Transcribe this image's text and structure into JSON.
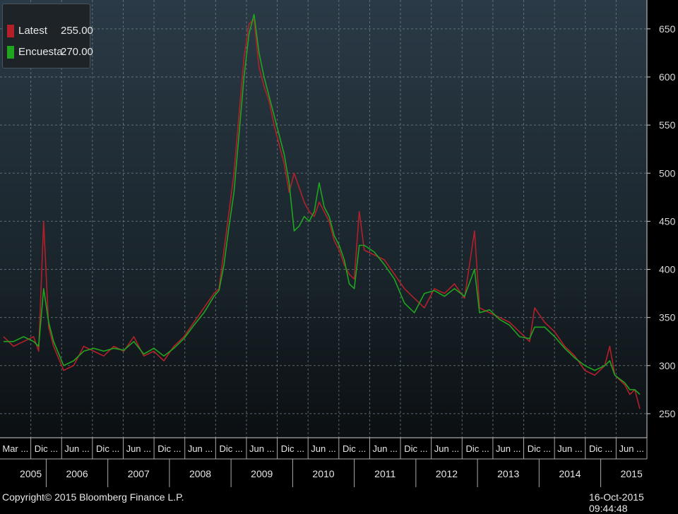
{
  "chart_data": {
    "type": "line",
    "ylim": [
      225,
      680
    ],
    "yticks": [
      250,
      300,
      350,
      400,
      450,
      500,
      550,
      600,
      650
    ],
    "grid": true,
    "legend_position": "top-left",
    "month_labels": [
      "Mar ...",
      "Dic ...",
      "Jun ...",
      "Dic ...",
      "Jun ...",
      "Dic ...",
      "Jun ...",
      "Dic ...",
      "Jun ...",
      "Dic ...",
      "Jun ...",
      "Dic ...",
      "Jun ...",
      "Dic ...",
      "Jun ...",
      "Dic ...",
      "Jun ...",
      "Dic ...",
      "Jun ...",
      "Dic ...",
      "Jun ..."
    ],
    "year_labels": [
      "2005",
      "2006",
      "2007",
      "2008",
      "2009",
      "2010",
      "2011",
      "2012",
      "2013",
      "2014",
      "2015"
    ],
    "x_range": [
      "2005-03",
      "2015-10"
    ],
    "series": [
      {
        "name": "Latest",
        "latest_value": "255.00",
        "color": "#b3202a",
        "points": [
          [
            "2005-03",
            330
          ],
          [
            "2005-05",
            320
          ],
          [
            "2005-07",
            325
          ],
          [
            "2005-09",
            330
          ],
          [
            "2005-10",
            315
          ],
          [
            "2005-11",
            450
          ],
          [
            "2005-12",
            340
          ],
          [
            "2006-01",
            320
          ],
          [
            "2006-03",
            295
          ],
          [
            "2006-05",
            300
          ],
          [
            "2006-07",
            320
          ],
          [
            "2006-09",
            315
          ],
          [
            "2006-11",
            310
          ],
          [
            "2007-01",
            320
          ],
          [
            "2007-03",
            315
          ],
          [
            "2007-05",
            330
          ],
          [
            "2007-07",
            310
          ],
          [
            "2007-09",
            315
          ],
          [
            "2007-11",
            305
          ],
          [
            "2008-01",
            320
          ],
          [
            "2008-03",
            330
          ],
          [
            "2008-05",
            345
          ],
          [
            "2008-07",
            360
          ],
          [
            "2008-09",
            375
          ],
          [
            "2008-10",
            380
          ],
          [
            "2008-11",
            420
          ],
          [
            "2008-12",
            460
          ],
          [
            "2009-01",
            500
          ],
          [
            "2009-02",
            560
          ],
          [
            "2009-03",
            620
          ],
          [
            "2009-04",
            655
          ],
          [
            "2009-05",
            660
          ],
          [
            "2009-06",
            610
          ],
          [
            "2009-07",
            590
          ],
          [
            "2009-08",
            575
          ],
          [
            "2009-09",
            550
          ],
          [
            "2009-10",
            530
          ],
          [
            "2009-11",
            510
          ],
          [
            "2009-12",
            480
          ],
          [
            "2010-01",
            500
          ],
          [
            "2010-02",
            485
          ],
          [
            "2010-03",
            470
          ],
          [
            "2010-04",
            460
          ],
          [
            "2010-05",
            455
          ],
          [
            "2010-06",
            470
          ],
          [
            "2010-07",
            460
          ],
          [
            "2010-08",
            450
          ],
          [
            "2010-09",
            430
          ],
          [
            "2010-10",
            420
          ],
          [
            "2010-11",
            405
          ],
          [
            "2010-12",
            395
          ],
          [
            "2011-01",
            390
          ],
          [
            "2011-02",
            460
          ],
          [
            "2011-03",
            420
          ],
          [
            "2011-05",
            415
          ],
          [
            "2011-07",
            410
          ],
          [
            "2011-09",
            395
          ],
          [
            "2011-11",
            380
          ],
          [
            "2012-01",
            370
          ],
          [
            "2012-03",
            360
          ],
          [
            "2012-05",
            380
          ],
          [
            "2012-07",
            375
          ],
          [
            "2012-09",
            385
          ],
          [
            "2012-11",
            370
          ],
          [
            "2013-01",
            440
          ],
          [
            "2013-02",
            360
          ],
          [
            "2013-04",
            355
          ],
          [
            "2013-06",
            350
          ],
          [
            "2013-08",
            345
          ],
          [
            "2013-10",
            335
          ],
          [
            "2013-12",
            325
          ],
          [
            "2014-01",
            360
          ],
          [
            "2014-03",
            345
          ],
          [
            "2014-05",
            335
          ],
          [
            "2014-07",
            320
          ],
          [
            "2014-09",
            310
          ],
          [
            "2014-11",
            295
          ],
          [
            "2015-01",
            290
          ],
          [
            "2015-03",
            300
          ],
          [
            "2015-04",
            320
          ],
          [
            "2015-05",
            290
          ],
          [
            "2015-07",
            280
          ],
          [
            "2015-08",
            270
          ],
          [
            "2015-09",
            275
          ],
          [
            "2015-10",
            255
          ]
        ]
      },
      {
        "name": "Encuesta",
        "latest_value": "270.00",
        "color": "#1fa51f",
        "points": [
          [
            "2005-03",
            325
          ],
          [
            "2005-05",
            325
          ],
          [
            "2005-07",
            330
          ],
          [
            "2005-09",
            325
          ],
          [
            "2005-10",
            320
          ],
          [
            "2005-11",
            380
          ],
          [
            "2005-12",
            345
          ],
          [
            "2006-01",
            325
          ],
          [
            "2006-03",
            300
          ],
          [
            "2006-05",
            305
          ],
          [
            "2006-07",
            315
          ],
          [
            "2006-09",
            318
          ],
          [
            "2006-11",
            315
          ],
          [
            "2007-01",
            318
          ],
          [
            "2007-03",
            316
          ],
          [
            "2007-05",
            325
          ],
          [
            "2007-07",
            312
          ],
          [
            "2007-09",
            318
          ],
          [
            "2007-11",
            310
          ],
          [
            "2008-01",
            318
          ],
          [
            "2008-03",
            328
          ],
          [
            "2008-05",
            342
          ],
          [
            "2008-07",
            355
          ],
          [
            "2008-09",
            372
          ],
          [
            "2008-10",
            378
          ],
          [
            "2008-11",
            405
          ],
          [
            "2008-12",
            445
          ],
          [
            "2009-01",
            480
          ],
          [
            "2009-02",
            540
          ],
          [
            "2009-03",
            600
          ],
          [
            "2009-04",
            645
          ],
          [
            "2009-05",
            665
          ],
          [
            "2009-06",
            625
          ],
          [
            "2009-07",
            600
          ],
          [
            "2009-08",
            580
          ],
          [
            "2009-09",
            560
          ],
          [
            "2009-10",
            540
          ],
          [
            "2009-11",
            520
          ],
          [
            "2009-12",
            490
          ],
          [
            "2010-01",
            440
          ],
          [
            "2010-02",
            445
          ],
          [
            "2010-03",
            455
          ],
          [
            "2010-04",
            450
          ],
          [
            "2010-05",
            460
          ],
          [
            "2010-06",
            490
          ],
          [
            "2010-07",
            465
          ],
          [
            "2010-08",
            455
          ],
          [
            "2010-09",
            435
          ],
          [
            "2010-10",
            425
          ],
          [
            "2010-11",
            410
          ],
          [
            "2010-12",
            385
          ],
          [
            "2011-01",
            380
          ],
          [
            "2011-02",
            425
          ],
          [
            "2011-03",
            425
          ],
          [
            "2011-05",
            418
          ],
          [
            "2011-07",
            405
          ],
          [
            "2011-09",
            390
          ],
          [
            "2011-11",
            365
          ],
          [
            "2012-01",
            355
          ],
          [
            "2012-03",
            375
          ],
          [
            "2012-05",
            378
          ],
          [
            "2012-07",
            372
          ],
          [
            "2012-09",
            380
          ],
          [
            "2012-11",
            372
          ],
          [
            "2013-01",
            400
          ],
          [
            "2013-02",
            355
          ],
          [
            "2013-04",
            358
          ],
          [
            "2013-06",
            348
          ],
          [
            "2013-08",
            342
          ],
          [
            "2013-10",
            330
          ],
          [
            "2013-12",
            328
          ],
          [
            "2014-01",
            340
          ],
          [
            "2014-03",
            340
          ],
          [
            "2014-05",
            330
          ],
          [
            "2014-07",
            318
          ],
          [
            "2014-09",
            308
          ],
          [
            "2014-11",
            300
          ],
          [
            "2015-01",
            295
          ],
          [
            "2015-03",
            300
          ],
          [
            "2015-04",
            305
          ],
          [
            "2015-05",
            290
          ],
          [
            "2015-07",
            282
          ],
          [
            "2015-08",
            275
          ],
          [
            "2015-09",
            275
          ],
          [
            "2015-10",
            270
          ]
        ]
      }
    ]
  },
  "footer": {
    "copyright": "Copyright© 2015 Bloomberg Finance L.P.",
    "timestamp": "16-Oct-2015 09:44:48"
  }
}
